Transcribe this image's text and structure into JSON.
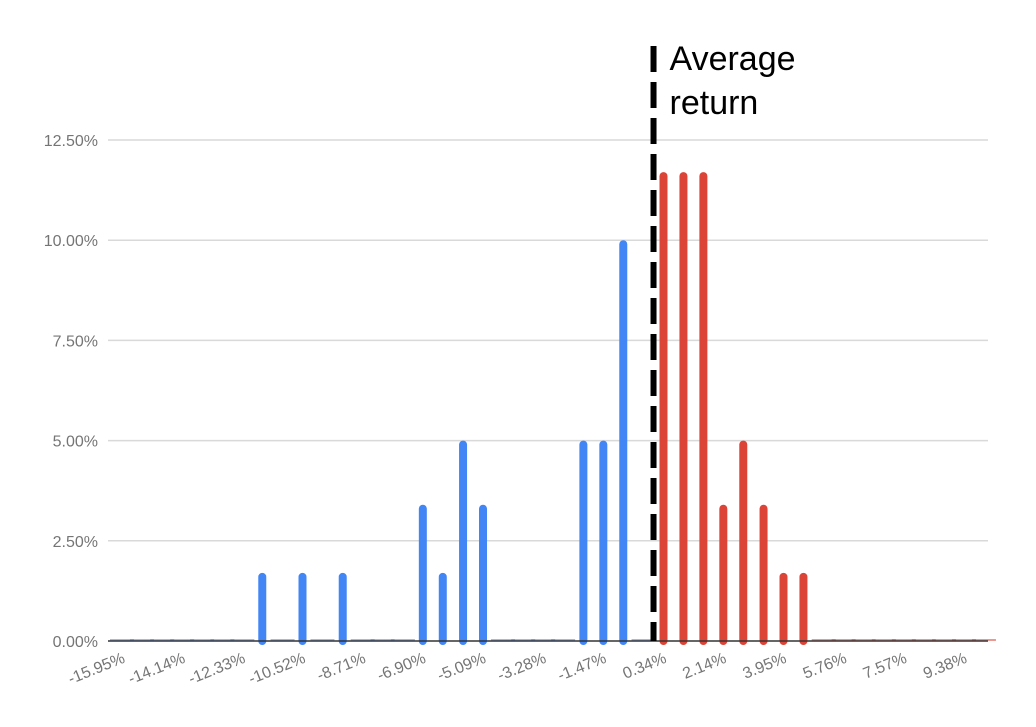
{
  "chart_data": {
    "type": "bar",
    "title": "",
    "xlabel": "",
    "ylabel": "",
    "ylim": [
      0,
      12.5
    ],
    "y_ticks": [
      "0.00%",
      "2.50%",
      "5.00%",
      "7.50%",
      "10.00%",
      "12.50%"
    ],
    "y_tick_values": [
      0,
      2.5,
      5,
      7.5,
      10,
      12.5
    ],
    "x_tick_labels": [
      "-15.95%",
      "-14.14%",
      "-12.33%",
      "-10.52%",
      "-8.71%",
      "-6.90%",
      "-5.09%",
      "-3.28%",
      "-1.47%",
      "0.34%",
      "2.14%",
      "3.95%",
      "5.76%",
      "7.57%",
      "9.38%"
    ],
    "grid": true,
    "colors": {
      "below_average": "#4285f4",
      "above_average": "#db4437",
      "grid": "#d9d9d9",
      "baseline": "#333333",
      "marker": "#000000"
    },
    "series": [
      {
        "color_key": "below_average",
        "x": [
          -15.95,
          -15.35,
          -14.74,
          -14.14,
          -13.54,
          -12.93,
          -12.33,
          -11.73,
          -11.12,
          -10.52,
          -9.92,
          -9.31,
          -8.71,
          -8.11,
          -7.5,
          -6.9,
          -6.3,
          -5.69,
          -5.09,
          -4.49,
          -3.88,
          -3.28,
          -2.68,
          -2.07,
          -1.47,
          -0.87,
          -0.26
        ],
        "values": [
          0,
          0,
          0,
          0,
          0,
          0,
          0,
          1.6,
          0,
          1.6,
          0,
          1.6,
          0,
          0,
          0,
          3.3,
          1.6,
          4.9,
          3.3,
          0,
          0,
          0,
          0,
          4.9,
          4.9,
          9.9,
          0
        ]
      },
      {
        "color_key": "above_average",
        "x": [
          0.34,
          0.94,
          1.54,
          2.14,
          2.74,
          3.35,
          3.95,
          4.55,
          5.16,
          5.76,
          6.36,
          6.97,
          7.57,
          8.17,
          8.78,
          9.38,
          9.98
        ],
        "values": [
          11.6,
          11.6,
          11.6,
          3.3,
          4.9,
          3.3,
          1.6,
          1.6,
          0,
          0,
          0,
          0,
          0,
          0,
          0,
          0,
          0
        ]
      }
    ],
    "annotations": [
      {
        "type": "vline",
        "style": "dashed",
        "x": 0.04,
        "label_lines": [
          "Average",
          "return"
        ]
      }
    ]
  }
}
